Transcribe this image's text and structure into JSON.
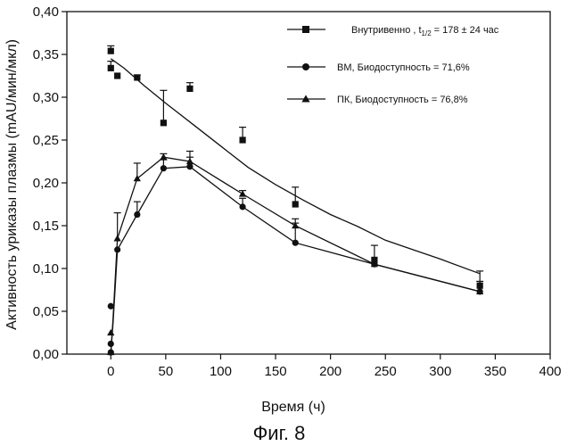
{
  "chart_data": {
    "type": "line",
    "title": "",
    "xlabel": "Время (ч)",
    "ylabel": "Активность уриказы плазмы (mAU/мин/мкл)",
    "caption": "Фиг. 8",
    "xlim": [
      -40,
      400
    ],
    "ylim": [
      0,
      0.4
    ],
    "xticks": [
      0,
      50,
      100,
      150,
      200,
      250,
      300,
      350,
      400
    ],
    "yticks": [
      0.0,
      0.05,
      0.1,
      0.15,
      0.2,
      0.25,
      0.3,
      0.35,
      0.4
    ],
    "xtick_labels": [
      "0",
      "50",
      "100",
      "150",
      "200",
      "250",
      "300",
      "350",
      "400"
    ],
    "ytick_labels": [
      "0,00",
      "0,05",
      "0,10",
      "0,15",
      "0,20",
      "0,25",
      "0,30",
      "0,35",
      "0,40"
    ],
    "grid": false,
    "legend_position": "top-right",
    "series": [
      {
        "name": "Внутривенно , t1/2 = 178 ± 24 час",
        "name_main": "Внутривенно ,  t",
        "name_sub": "1/2",
        "name_tail": "= 178 ± 24 час",
        "marker": "square",
        "points": [
          {
            "x": 0,
            "y": 0.354,
            "err": 0.006
          },
          {
            "x": 0,
            "y": 0.334,
            "err": 0.008
          },
          {
            "x": 6,
            "y": 0.325,
            "err": 0
          },
          {
            "x": 24,
            "y": 0.323,
            "err": 0.003
          },
          {
            "x": 48,
            "y": 0.27,
            "err": 0.038
          },
          {
            "x": 72,
            "y": 0.31,
            "err": 0.007
          },
          {
            "x": 120,
            "y": 0.25,
            "err": 0.015
          },
          {
            "x": 168,
            "y": 0.175,
            "err": 0.02
          },
          {
            "x": 240,
            "y": 0.11,
            "err": 0.017
          },
          {
            "x": 336,
            "y": 0.08,
            "err": 0.017
          }
        ],
        "curve": [
          [
            0,
            0.345
          ],
          [
            12,
            0.334
          ],
          [
            30,
            0.314
          ],
          [
            50,
            0.293
          ],
          [
            75,
            0.268
          ],
          [
            100,
            0.243
          ],
          [
            125,
            0.218
          ],
          [
            150,
            0.198
          ],
          [
            175,
            0.18
          ],
          [
            200,
            0.163
          ],
          [
            225,
            0.149
          ],
          [
            250,
            0.133
          ],
          [
            275,
            0.122
          ],
          [
            300,
            0.111
          ],
          [
            336,
            0.094
          ]
        ]
      },
      {
        "name": "ВМ, Биодоступность = 71,6%",
        "marker": "circle",
        "points": [
          {
            "x": 0,
            "y": 0.002,
            "err": 0
          },
          {
            "x": 0,
            "y": 0.012,
            "err": 0
          },
          {
            "x": 0,
            "y": 0.056,
            "err": 0
          },
          {
            "x": 6,
            "y": 0.122,
            "err": 0
          },
          {
            "x": 24,
            "y": 0.163,
            "err": 0.015
          },
          {
            "x": 48,
            "y": 0.217,
            "err": 0.01
          },
          {
            "x": 72,
            "y": 0.219,
            "err": 0.018
          },
          {
            "x": 120,
            "y": 0.172,
            "err": 0.01
          },
          {
            "x": 168,
            "y": 0.13,
            "err": 0.023
          },
          {
            "x": 240,
            "y": 0.105,
            "err": 0
          },
          {
            "x": 336,
            "y": 0.073,
            "err": 0.012
          }
        ],
        "curve": [
          [
            0,
            0.002
          ],
          [
            2,
            0.035
          ],
          [
            6,
            0.122
          ],
          [
            24,
            0.163
          ],
          [
            48,
            0.217
          ],
          [
            72,
            0.219
          ],
          [
            120,
            0.172
          ],
          [
            168,
            0.13
          ],
          [
            240,
            0.105
          ],
          [
            336,
            0.073
          ]
        ]
      },
      {
        "name": "ПК, Биодоступность = 76,8%",
        "marker": "triangle",
        "points": [
          {
            "x": 0,
            "y": 0.002,
            "err": 0
          },
          {
            "x": 0,
            "y": 0.025,
            "err": 0
          },
          {
            "x": 6,
            "y": 0.135,
            "err": 0.03
          },
          {
            "x": 24,
            "y": 0.205,
            "err": 0.018
          },
          {
            "x": 48,
            "y": 0.23,
            "err": 0.004
          },
          {
            "x": 72,
            "y": 0.225,
            "err": 0.005
          },
          {
            "x": 120,
            "y": 0.187,
            "err": 0.004
          },
          {
            "x": 168,
            "y": 0.15,
            "err": 0.008
          },
          {
            "x": 240,
            "y": 0.105,
            "err": 0
          },
          {
            "x": 336,
            "y": 0.073,
            "err": 0
          }
        ],
        "curve": [
          [
            0,
            0.002
          ],
          [
            2,
            0.04
          ],
          [
            6,
            0.135
          ],
          [
            24,
            0.205
          ],
          [
            48,
            0.23
          ],
          [
            72,
            0.225
          ],
          [
            120,
            0.187
          ],
          [
            168,
            0.15
          ],
          [
            240,
            0.105
          ],
          [
            336,
            0.073
          ]
        ]
      }
    ]
  }
}
